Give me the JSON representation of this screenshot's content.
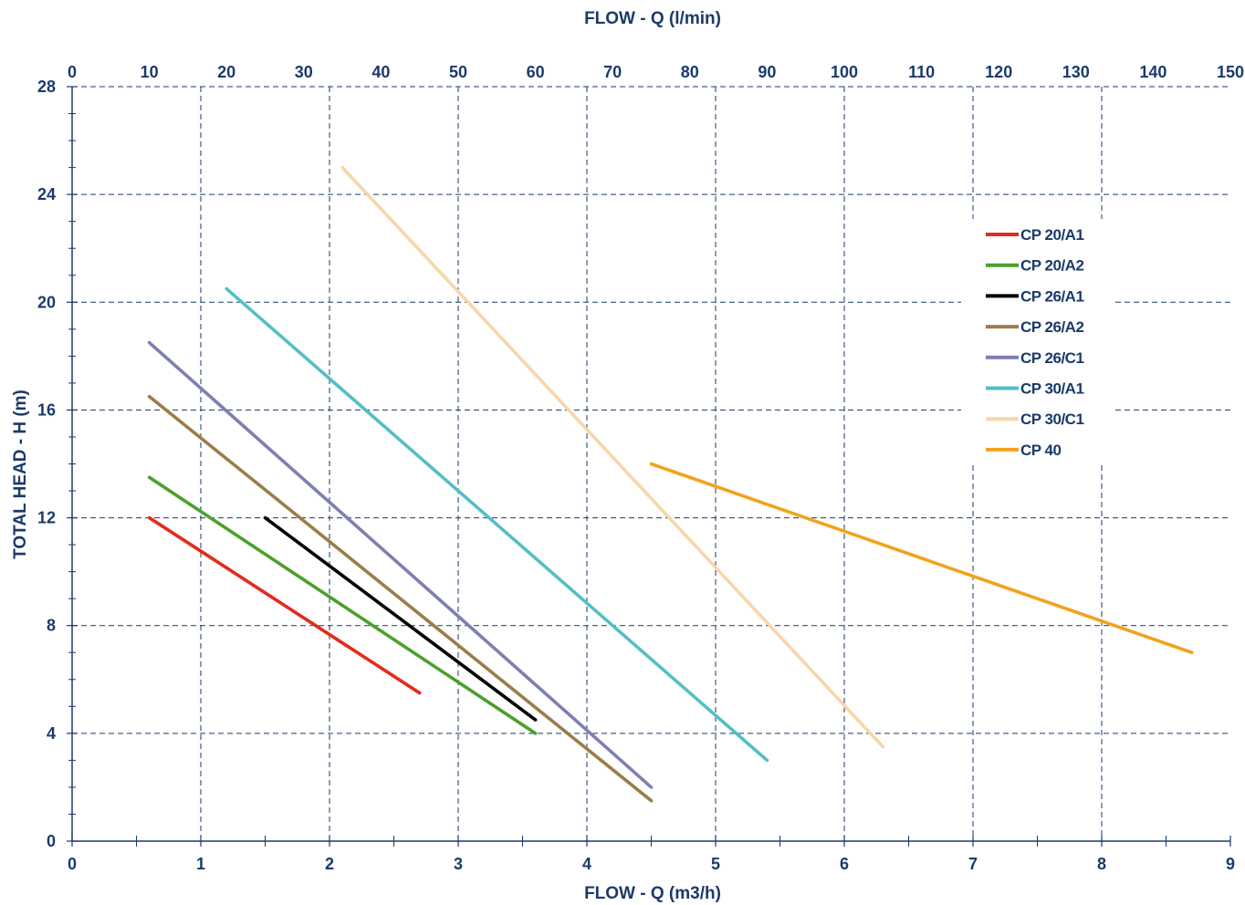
{
  "chart_data": {
    "type": "line",
    "title_top": "FLOW - Q (l/min)",
    "xlabel": "FLOW - Q (m3/h)",
    "ylabel": "TOTAL HEAD - H (m)",
    "xlim": [
      0,
      9
    ],
    "ylim": [
      0,
      28
    ],
    "x_ticks": [
      "0",
      "1",
      "2",
      "3",
      "4",
      "5",
      "6",
      "7",
      "8",
      "9"
    ],
    "y_ticks": [
      "0",
      "4",
      "8",
      "12",
      "16",
      "20",
      "24",
      "28"
    ],
    "top_axis": {
      "lim": [
        0,
        150
      ],
      "ticks": [
        "0",
        "10",
        "20",
        "30",
        "40",
        "50",
        "60",
        "70",
        "80",
        "90",
        "100",
        "110",
        "120",
        "130",
        "140",
        "150"
      ]
    },
    "grid": true,
    "legend_position": "right",
    "series": [
      {
        "name": "CP 20/A1",
        "color": "#e32b1e",
        "points": [
          [
            0.6,
            12.0
          ],
          [
            2.7,
            5.5
          ]
        ]
      },
      {
        "name": "CP 20/A2",
        "color": "#4aa02c",
        "points": [
          [
            0.6,
            13.5
          ],
          [
            3.6,
            4.0
          ]
        ]
      },
      {
        "name": "CP 26/A1",
        "color": "#000000",
        "points": [
          [
            1.5,
            12.0
          ],
          [
            3.6,
            4.5
          ]
        ]
      },
      {
        "name": "CP 26/A2",
        "color": "#9b7d4b",
        "points": [
          [
            0.6,
            16.5
          ],
          [
            4.5,
            1.5
          ]
        ]
      },
      {
        "name": "CP 26/C1",
        "color": "#7f7fb2",
        "points": [
          [
            0.6,
            18.5
          ],
          [
            4.5,
            2.0
          ]
        ]
      },
      {
        "name": "CP 30/A1",
        "color": "#53bfc4",
        "points": [
          [
            1.2,
            20.5
          ],
          [
            5.4,
            3.0
          ]
        ]
      },
      {
        "name": "CP 30/C1",
        "color": "#f7d6aa",
        "points": [
          [
            2.1,
            25.0
          ],
          [
            6.3,
            3.5
          ]
        ]
      },
      {
        "name": "CP 40",
        "color": "#f3a21c",
        "points": [
          [
            4.5,
            14.0
          ],
          [
            8.7,
            7.0
          ]
        ]
      }
    ]
  }
}
